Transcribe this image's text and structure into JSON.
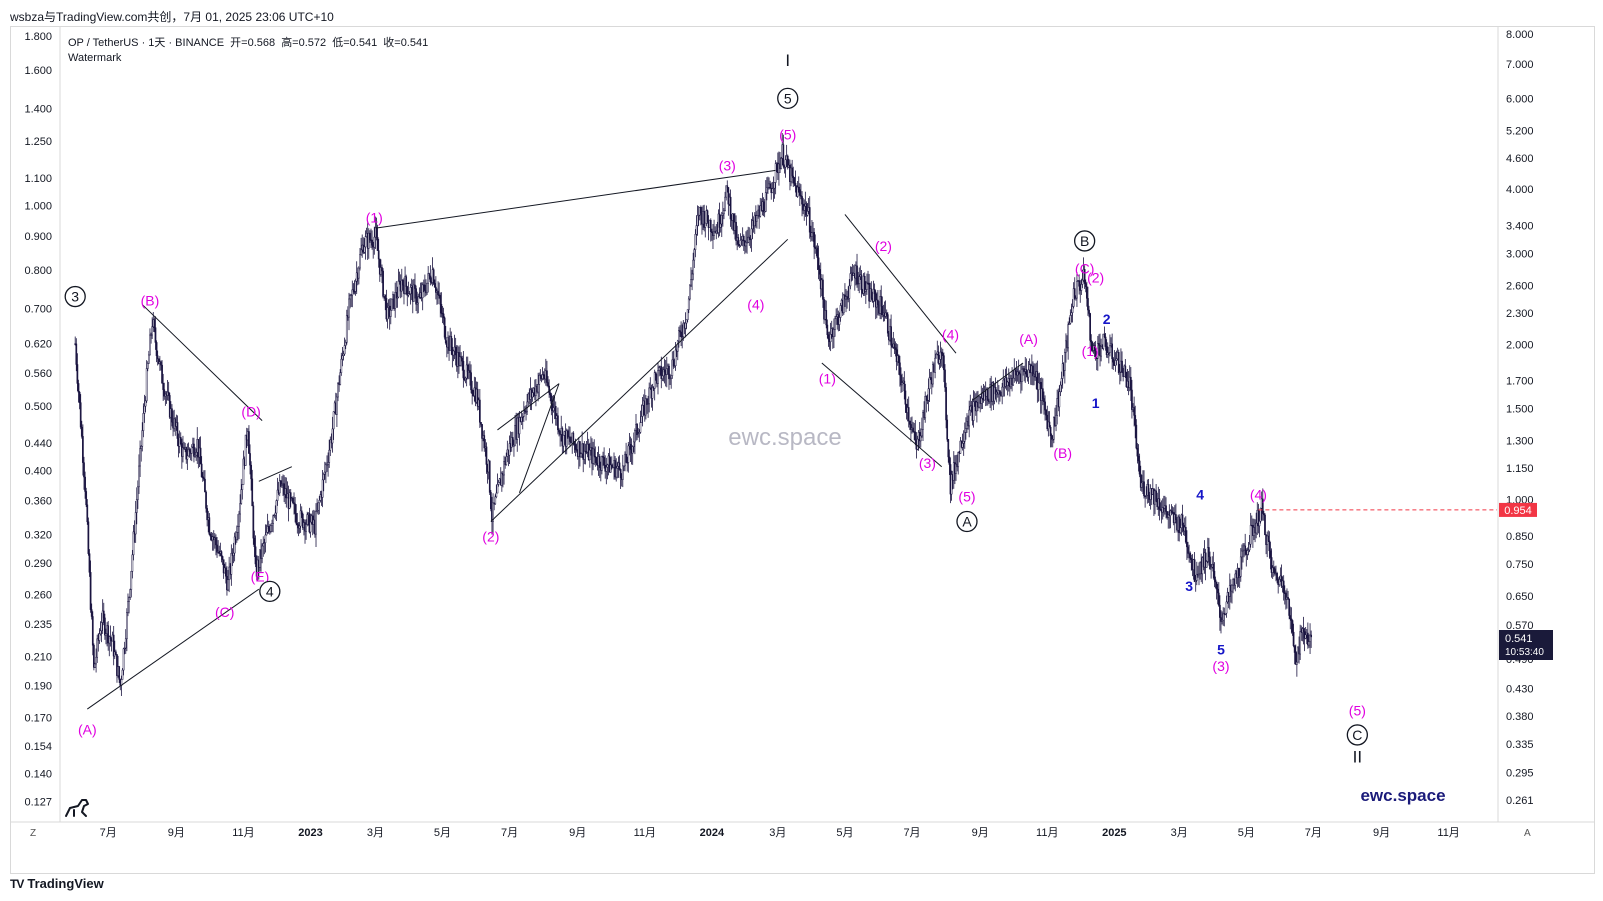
{
  "header": {
    "title": "wsbza与TradingView.com共创，7月 01, 2025 23:06 UTC+10"
  },
  "legend": {
    "symbol": "OP / TetherUS · 1天 · BINANCE",
    "open_label": "开=",
    "open": "0.568",
    "high_label": "高=",
    "high": "0.572",
    "low_label": "低=",
    "low": "0.541",
    "close_label": "收=",
    "close": "0.541",
    "sub": "Watermark"
  },
  "watermark": "ewc.space",
  "brand": "ewc.space",
  "footer": {
    "logo": "TV",
    "text": "TradingView"
  },
  "corners": {
    "left": "Z",
    "right": "A"
  },
  "colors": {
    "candles": "#1a1440",
    "wave_magenta": "#e000e0",
    "wave_blue": "#1616c8",
    "price_tag": "#f23645",
    "current_tag": "#1a1a3a",
    "brand": "#1b1b7a"
  },
  "chart_data": {
    "type": "candlestick",
    "scale": "log",
    "left_axis_ticks": [
      "1.800",
      "1.600",
      "1.400",
      "1.250",
      "1.100",
      "1.000",
      "0.900",
      "0.800",
      "0.700",
      "0.620",
      "0.560",
      "0.500",
      "0.440",
      "0.400",
      "0.360",
      "0.320",
      "0.290",
      "0.260",
      "0.235",
      "0.210",
      "0.190",
      "0.170",
      "0.154",
      "0.140",
      "0.127"
    ],
    "right_axis_ticks": [
      "8.000",
      "7.000",
      "6.000",
      "5.200",
      "4.600",
      "4.000",
      "3.400",
      "3.000",
      "2.600",
      "2.300",
      "2.000",
      "1.700",
      "1.500",
      "1.300",
      "1.150",
      "1.000",
      "0.850",
      "0.750",
      "0.650",
      "0.570",
      "0.490",
      "0.430",
      "0.380",
      "0.335",
      "0.295",
      "0.261"
    ],
    "x_ticks": [
      "7月",
      "9月",
      "11月",
      "2023",
      "3月",
      "5月",
      "7月",
      "9月",
      "11月",
      "2024",
      "3月",
      "5月",
      "7月",
      "9月",
      "11月",
      "2025",
      "3月",
      "5月",
      "7月",
      "9月",
      "11月"
    ],
    "ylim": [
      0.12,
      1.85
    ],
    "horizontal_line": {
      "value": "0.954",
      "style": "dashed"
    },
    "current_price": {
      "value": "0.541",
      "countdown": "10:53:40"
    },
    "price_path": [
      [
        "2022-06-01",
        0.62
      ],
      [
        "2022-06-05",
        0.5
      ],
      [
        "2022-06-10",
        0.38
      ],
      [
        "2022-06-18",
        0.2
      ],
      [
        "2022-06-25",
        0.24
      ],
      [
        "2022-07-05",
        0.22
      ],
      [
        "2022-07-12",
        0.19
      ],
      [
        "2022-07-20",
        0.26
      ],
      [
        "2022-07-28",
        0.38
      ],
      [
        "2022-08-05",
        0.55
      ],
      [
        "2022-08-10",
        0.67
      ],
      [
        "2022-08-18",
        0.56
      ],
      [
        "2022-08-28",
        0.48
      ],
      [
        "2022-09-08",
        0.42
      ],
      [
        "2022-09-20",
        0.44
      ],
      [
        "2022-10-01",
        0.33
      ],
      [
        "2022-10-10",
        0.3
      ],
      [
        "2022-10-18",
        0.27
      ],
      [
        "2022-10-28",
        0.35
      ],
      [
        "2022-11-05",
        0.47
      ],
      [
        "2022-11-12",
        0.28
      ],
      [
        "2022-11-20",
        0.31
      ],
      [
        "2022-12-05",
        0.38
      ],
      [
        "2022-12-20",
        0.34
      ],
      [
        "2023-01-05",
        0.33
      ],
      [
        "2023-01-20",
        0.45
      ],
      [
        "2023-02-05",
        0.7
      ],
      [
        "2023-02-18",
        0.88
      ],
      [
        "2023-03-01",
        0.9
      ],
      [
        "2023-03-12",
        0.68
      ],
      [
        "2023-03-25",
        0.77
      ],
      [
        "2023-04-10",
        0.72
      ],
      [
        "2023-04-22",
        0.8
      ],
      [
        "2023-05-05",
        0.63
      ],
      [
        "2023-05-20",
        0.57
      ],
      [
        "2023-06-01",
        0.52
      ],
      [
        "2023-06-12",
        0.4
      ],
      [
        "2023-06-15",
        0.34
      ],
      [
        "2023-06-28",
        0.42
      ],
      [
        "2023-07-15",
        0.5
      ],
      [
        "2023-08-01",
        0.56
      ],
      [
        "2023-08-18",
        0.45
      ],
      [
        "2023-09-05",
        0.43
      ],
      [
        "2023-09-25",
        0.41
      ],
      [
        "2023-10-12",
        0.4
      ],
      [
        "2023-10-25",
        0.46
      ],
      [
        "2023-11-10",
        0.55
      ],
      [
        "2023-11-25",
        0.57
      ],
      [
        "2023-12-10",
        0.7
      ],
      [
        "2023-12-20",
        0.98
      ],
      [
        "2024-01-05",
        0.92
      ],
      [
        "2024-01-15",
        1.05
      ],
      [
        "2024-01-25",
        0.86
      ],
      [
        "2024-02-08",
        0.93
      ],
      [
        "2024-02-22",
        1.05
      ],
      [
        "2024-03-05",
        1.2
      ],
      [
        "2024-03-15",
        1.08
      ],
      [
        "2024-03-28",
        0.98
      ],
      [
        "2024-04-08",
        0.8
      ],
      [
        "2024-04-15",
        0.63
      ],
      [
        "2024-04-28",
        0.7
      ],
      [
        "2024-05-10",
        0.8
      ],
      [
        "2024-05-22",
        0.74
      ],
      [
        "2024-06-05",
        0.7
      ],
      [
        "2024-06-20",
        0.56
      ],
      [
        "2024-07-05",
        0.43
      ],
      [
        "2024-07-18",
        0.55
      ],
      [
        "2024-07-28",
        0.62
      ],
      [
        "2024-08-05",
        0.38
      ],
      [
        "2024-08-20",
        0.48
      ],
      [
        "2024-09-05",
        0.52
      ],
      [
        "2024-09-20",
        0.53
      ],
      [
        "2024-10-05",
        0.56
      ],
      [
        "2024-10-20",
        0.57
      ],
      [
        "2024-11-05",
        0.45
      ],
      [
        "2024-11-15",
        0.56
      ],
      [
        "2024-11-25",
        0.74
      ],
      [
        "2024-12-05",
        0.78
      ],
      [
        "2024-12-12",
        0.6
      ],
      [
        "2024-12-22",
        0.62
      ],
      [
        "2025-01-05",
        0.58
      ],
      [
        "2025-01-15",
        0.54
      ],
      [
        "2025-01-25",
        0.38
      ],
      [
        "2025-02-05",
        0.37
      ],
      [
        "2025-02-20",
        0.34
      ],
      [
        "2025-03-05",
        0.33
      ],
      [
        "2025-03-15",
        0.28
      ],
      [
        "2025-03-28",
        0.3
      ],
      [
        "2025-04-08",
        0.24
      ],
      [
        "2025-04-20",
        0.27
      ],
      [
        "2025-05-05",
        0.32
      ],
      [
        "2025-05-15",
        0.35
      ],
      [
        "2025-05-25",
        0.28
      ],
      [
        "2025-06-05",
        0.27
      ],
      [
        "2025-06-15",
        0.21
      ],
      [
        "2025-06-22",
        0.23
      ],
      [
        "2025-06-30",
        0.22
      ]
    ],
    "annotations": [
      {
        "text": "3",
        "style": "circled-black",
        "date": "2022-06-01",
        "y": 0.73
      },
      {
        "text": "(A)",
        "style": "magenta",
        "date": "2022-06-12",
        "y": 0.163
      },
      {
        "text": "(B)",
        "style": "magenta",
        "date": "2022-08-08",
        "y": 0.72
      },
      {
        "text": "(C)",
        "style": "magenta",
        "date": "2022-10-15",
        "y": 0.245
      },
      {
        "text": "(D)",
        "style": "magenta",
        "date": "2022-11-08",
        "y": 0.49
      },
      {
        "text": "(E)",
        "style": "magenta",
        "date": "2022-11-16",
        "y": 0.277
      },
      {
        "text": "4",
        "style": "circled-black",
        "date": "2022-11-25",
        "y": 0.263
      },
      {
        "text": "(1)",
        "style": "magenta",
        "date": "2023-02-28",
        "y": 0.96
      },
      {
        "text": "(2)",
        "style": "magenta",
        "date": "2023-06-14",
        "y": 0.318
      },
      {
        "text": "(3)",
        "style": "magenta",
        "date": "2024-01-15",
        "y": 1.15
      },
      {
        "text": "(4)",
        "style": "magenta",
        "date": "2024-02-10",
        "y": 0.71
      },
      {
        "text": "I",
        "style": "roman-black",
        "date": "2024-03-10",
        "y": 1.65
      },
      {
        "text": "5",
        "style": "circled-black",
        "date": "2024-03-10",
        "y": 1.45
      },
      {
        "text": "(5)",
        "style": "magenta",
        "date": "2024-03-10",
        "y": 1.28
      },
      {
        "text": "(1)",
        "style": "magenta",
        "date": "2024-04-15",
        "y": 0.55
      },
      {
        "text": "(2)",
        "style": "magenta",
        "date": "2024-06-05",
        "y": 0.87
      },
      {
        "text": "(3)",
        "style": "magenta",
        "date": "2024-07-15",
        "y": 0.41
      },
      {
        "text": "(4)",
        "style": "magenta",
        "date": "2024-08-05",
        "y": 0.64
      },
      {
        "text": "(5)",
        "style": "magenta",
        "date": "2024-08-20",
        "y": 0.365
      },
      {
        "text": "A",
        "style": "circled-black",
        "date": "2024-08-20",
        "y": 0.335
      },
      {
        "text": "(A)",
        "style": "magenta",
        "date": "2024-10-15",
        "y": 0.63
      },
      {
        "text": "(B)",
        "style": "magenta",
        "date": "2024-11-15",
        "y": 0.425
      },
      {
        "text": "B",
        "style": "circled-black",
        "date": "2024-12-05",
        "y": 0.885
      },
      {
        "text": "(C)",
        "style": "magenta",
        "date": "2024-12-05",
        "y": 0.805
      },
      {
        "text": "(2)",
        "style": "magenta",
        "date": "2024-12-15",
        "y": 0.78
      },
      {
        "text": "(1)",
        "style": "magenta",
        "date": "2024-12-10",
        "y": 0.605
      },
      {
        "text": "1",
        "style": "blue",
        "date": "2024-12-15",
        "y": 0.505
      },
      {
        "text": "2",
        "style": "blue",
        "date": "2024-12-25",
        "y": 0.675
      },
      {
        "text": "3",
        "style": "blue",
        "date": "2025-03-10",
        "y": 0.268
      },
      {
        "text": "4",
        "style": "blue",
        "date": "2025-03-20",
        "y": 0.368
      },
      {
        "text": "5",
        "style": "blue",
        "date": "2025-04-08",
        "y": 0.215
      },
      {
        "text": "(3)",
        "style": "magenta",
        "date": "2025-04-08",
        "y": 0.203
      },
      {
        "text": "(4)",
        "style": "magenta",
        "date": "2025-05-12",
        "y": 0.368
      },
      {
        "text": "(5)",
        "style": "magenta",
        "date": "2025-08-10",
        "y": 0.174
      },
      {
        "text": "C",
        "style": "circled-black",
        "date": "2025-08-10",
        "y": 0.16
      },
      {
        "text": "II",
        "style": "roman-black",
        "date": "2025-08-10",
        "y": 0.148
      }
    ],
    "trendlines": [
      {
        "from": [
          "2022-06-12",
          0.175
        ],
        "to": [
          "2022-11-15",
          0.265
        ]
      },
      {
        "from": [
          "2022-08-01",
          0.71
        ],
        "to": [
          "2022-11-18",
          0.475
        ]
      },
      {
        "from": [
          "2022-11-15",
          0.385
        ],
        "to": [
          "2022-12-15",
          0.405
        ]
      },
      {
        "from": [
          "2023-03-01",
          0.925
        ],
        "to": [
          "2024-02-28",
          1.13
        ]
      },
      {
        "from": [
          "2023-06-14",
          0.335
        ],
        "to": [
          "2024-03-10",
          0.89
        ]
      },
      {
        "from": [
          "2023-06-20",
          0.46
        ],
        "to": [
          "2023-08-15",
          0.54
        ]
      },
      {
        "from": [
          "2023-07-10",
          0.37
        ],
        "to": [
          "2023-08-15",
          0.54
        ]
      },
      {
        "from": [
          "2024-04-10",
          0.58
        ],
        "to": [
          "2024-07-28",
          0.405
        ]
      },
      {
        "from": [
          "2024-05-01",
          0.97
        ],
        "to": [
          "2024-08-10",
          0.6
        ]
      },
      {
        "from": [
          "2024-08-25",
          0.51
        ],
        "to": [
          "2024-10-10",
          0.58
        ]
      }
    ]
  }
}
